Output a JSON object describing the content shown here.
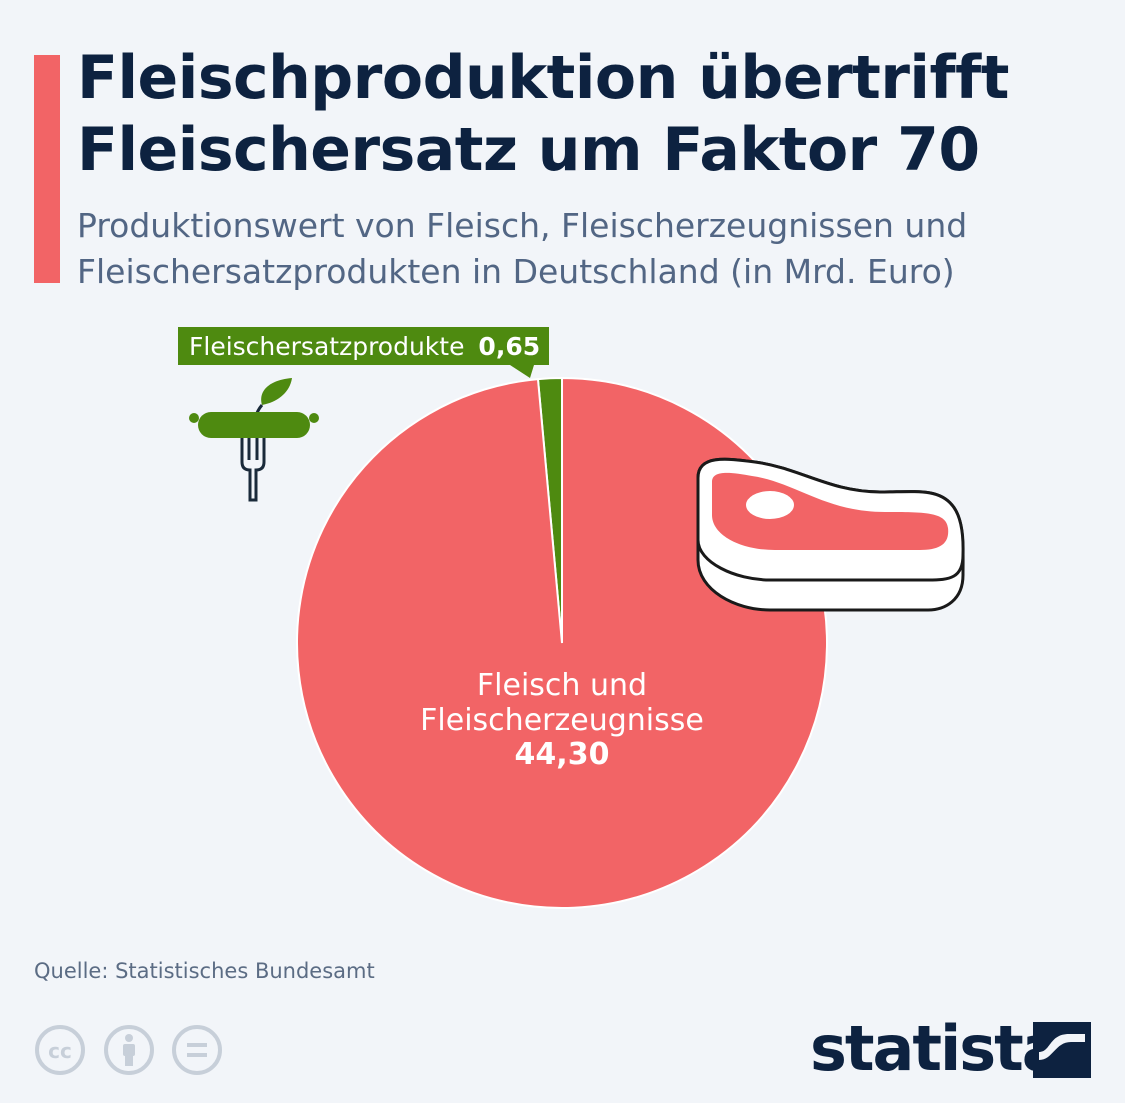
{
  "title": "Fleischproduktion übertrifft\nFleischersatz um Faktor 70",
  "subtitle": "Produktionswert von Fleisch, Fleischerzeugnissen und\nFleischersatzprodukten in Deutschland (in Mrd. Euro)",
  "source": "Quelle: Statistisches Bundesamt",
  "brand": "statista",
  "colors": {
    "accent": "#f26466",
    "meat": "#f26466",
    "substitute": "#4e8a10",
    "title": "#0d2240",
    "background": "#f2f5f9"
  },
  "icons": [
    "sausage-fork-icon",
    "steak-icon",
    "cc-icon",
    "by-icon",
    "nd-icon",
    "statista-logo-icon"
  ],
  "chart_data": {
    "type": "pie",
    "title": "Fleischproduktion übertrifft Fleischersatz um Faktor 70",
    "slices": [
      {
        "name": "Fleischersatzprodukte",
        "value": 0.65,
        "value_label": "0,65",
        "color": "#4e8a10"
      },
      {
        "name": "Fleisch und Fleischerzeugnisse",
        "value": 44.3,
        "value_label": "44,30",
        "color": "#f26466"
      }
    ],
    "labels": {
      "substitute": {
        "name": "Fleischersatzprodukte",
        "value": "0,65"
      },
      "meat_line1": "Fleisch und",
      "meat_line2": "Fleischerzeugnisse",
      "meat_value": "44,30"
    }
  }
}
